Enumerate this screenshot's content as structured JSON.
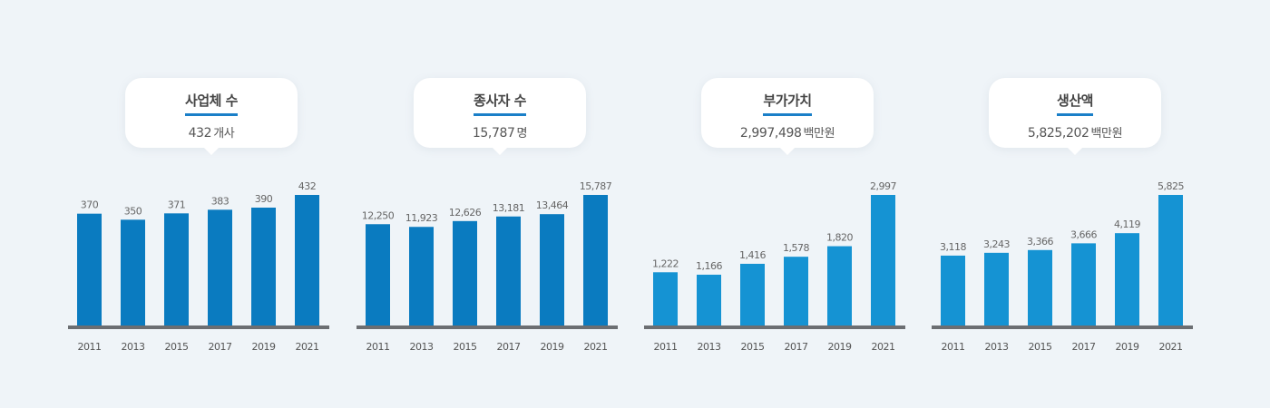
{
  "chart_data": [
    {
      "type": "bar",
      "title": "사업체 수",
      "total_value": "432",
      "unit": "개사",
      "categories": [
        "2011",
        "2013",
        "2015",
        "2017",
        "2019",
        "2021"
      ],
      "values": [
        370,
        350,
        371,
        383,
        390,
        432
      ],
      "value_labels": [
        "370",
        "350",
        "371",
        "383",
        "390",
        "432"
      ],
      "color": "#0a7bc0"
    },
    {
      "type": "bar",
      "title": "종사자 수",
      "total_value": "15,787",
      "unit": "명",
      "categories": [
        "2011",
        "2013",
        "2015",
        "2017",
        "2019",
        "2021"
      ],
      "values": [
        12250,
        11923,
        12626,
        13181,
        13464,
        15787
      ],
      "value_labels": [
        "12,250",
        "11,923",
        "12,626",
        "13,181",
        "13,464",
        "15,787"
      ],
      "color": "#0a7bc0"
    },
    {
      "type": "bar",
      "title": "부가가치",
      "total_value": "2,997,498",
      "unit": "백만원",
      "categories": [
        "2011",
        "2013",
        "2015",
        "2017",
        "2019",
        "2021"
      ],
      "values": [
        1222,
        1166,
        1416,
        1578,
        1820,
        2997
      ],
      "value_labels": [
        "1,222",
        "1,166",
        "1,416",
        "1,578",
        "1,820",
        "2,997"
      ],
      "color": "#1593d3"
    },
    {
      "type": "bar",
      "title": "생산액",
      "total_value": "5,825,202",
      "unit": "백만원",
      "categories": [
        "2011",
        "2013",
        "2015",
        "2017",
        "2019",
        "2021"
      ],
      "values": [
        3118,
        3243,
        3366,
        3666,
        4119,
        5825
      ],
      "value_labels": [
        "3,118",
        "3,243",
        "3,366",
        "3,666",
        "4,119",
        "5,825"
      ],
      "color": "#1593d3"
    }
  ]
}
